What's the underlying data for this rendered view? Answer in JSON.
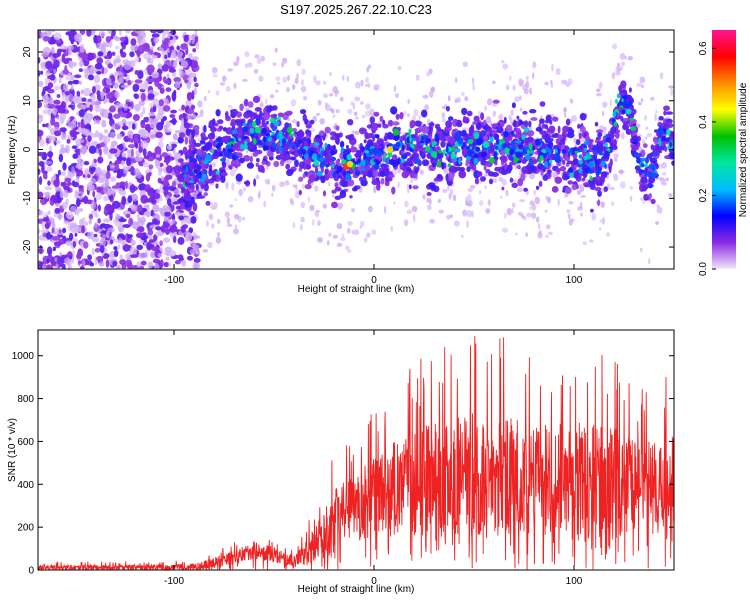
{
  "figure": {
    "title": "S197.2025.267.22.10.C23"
  },
  "chart_data": [
    {
      "type": "heatmap",
      "name": "spectrogram",
      "title": "S197.2025.267.22.10.C23",
      "xlabel": "Height of straight line (km)",
      "ylabel": "Frequency (Hz)",
      "xlim": [
        -168,
        150
      ],
      "ylim": [
        -24.5,
        24.5
      ],
      "xticks": [
        -100,
        0,
        100
      ],
      "xtick_labels": [
        "-100",
        "0",
        "100"
      ],
      "yticks": [
        -20,
        -10,
        0,
        10,
        20
      ],
      "ytick_labels": [
        "-20",
        "-10",
        "0",
        "10",
        "20"
      ],
      "colorbar": {
        "label": "Normalized spectral amplitude",
        "range": [
          0,
          0.65
        ],
        "ticks": [
          0,
          0.2,
          0.4,
          0.6
        ],
        "tick_labels": [
          "0.0",
          "0.2",
          "0.4",
          "0.6"
        ],
        "colors": [
          "#f2e6fa",
          "#8a2be2",
          "#0000ff",
          "#00bfff",
          "#00e5a0",
          "#00c000",
          "#ffff00",
          "#ff8c00",
          "#ff0000",
          "#ff1493"
        ]
      },
      "trend_hz": [
        [
          -95,
          -6
        ],
        [
          -85,
          -3
        ],
        [
          -75,
          0
        ],
        [
          -65,
          2
        ],
        [
          -50,
          3
        ],
        [
          -40,
          1
        ],
        [
          -25,
          -2
        ],
        [
          -10,
          -3
        ],
        [
          0,
          0
        ],
        [
          20,
          0
        ],
        [
          40,
          0
        ],
        [
          60,
          1
        ],
        [
          80,
          0
        ],
        [
          95,
          -1
        ],
        [
          110,
          -3
        ],
        [
          118,
          0
        ],
        [
          123,
          10
        ],
        [
          128,
          8
        ],
        [
          132,
          -2
        ],
        [
          138,
          -6
        ],
        [
          145,
          5
        ],
        [
          150,
          0
        ]
      ]
    },
    {
      "type": "line",
      "name": "snr",
      "xlabel": "Height of straight line (km)",
      "ylabel": "SNR (10 * v/v)",
      "xlim": [
        -168,
        150
      ],
      "ylim": [
        0,
        1120
      ],
      "xticks": [
        -100,
        0,
        100
      ],
      "xtick_labels": [
        "-100",
        "0",
        "100"
      ],
      "yticks": [
        0,
        200,
        400,
        600,
        800,
        1000
      ],
      "ytick_labels": [
        "0",
        "200",
        "400",
        "600",
        "800",
        "1000"
      ],
      "color": "#ee2222",
      "envelope": {
        "x": [
          -168,
          -140,
          -110,
          -90,
          -80,
          -70,
          -60,
          -50,
          -40,
          -35,
          -30,
          -25,
          -20,
          -10,
          0,
          10,
          20,
          30,
          40,
          50,
          60,
          70,
          80,
          90,
          100,
          110,
          120,
          130,
          140,
          150
        ],
        "mean": [
          12,
          12,
          12,
          14,
          30,
          60,
          90,
          70,
          40,
          70,
          100,
          170,
          230,
          290,
          330,
          370,
          400,
          420,
          430,
          440,
          440,
          430,
          420,
          420,
          420,
          420,
          410,
          400,
          390,
          380
        ],
        "max": [
          40,
          40,
          40,
          50,
          90,
          130,
          190,
          150,
          100,
          180,
          300,
          450,
          560,
          640,
          760,
          880,
          960,
          1060,
          1060,
          1100,
          1110,
          1060,
          1000,
          1020,
          1050,
          1080,
          1010,
          860,
          920,
          960
        ]
      }
    }
  ]
}
